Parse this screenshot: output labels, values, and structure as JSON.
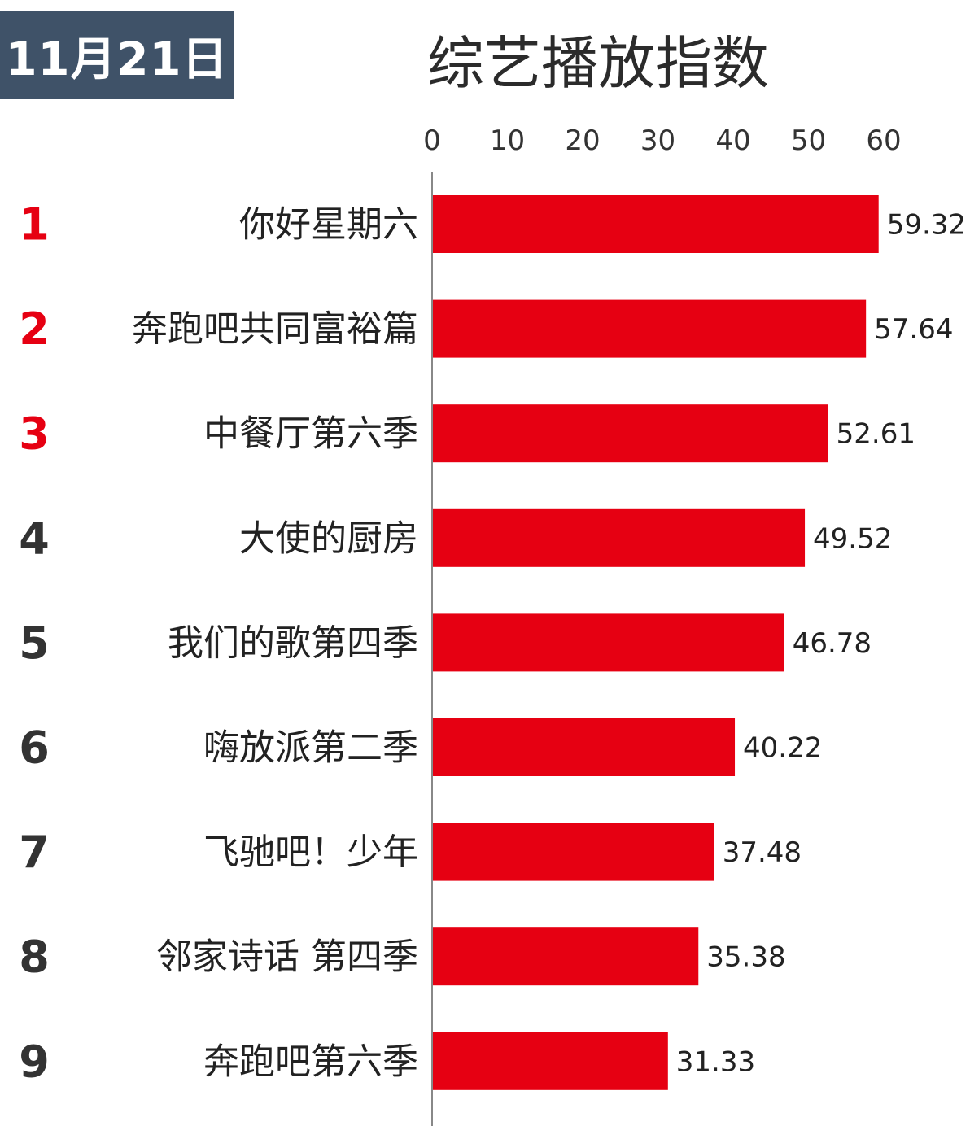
{
  "header": {
    "date": "11月21日",
    "title": "综艺播放指数"
  },
  "colors": {
    "badge_bg": "#3f5268",
    "bar": "#e60012",
    "top_rank": "#e60012",
    "rank": "#333333"
  },
  "chart_data": {
    "type": "bar",
    "orientation": "horizontal",
    "title": "综艺播放指数",
    "x_axis_position": "top",
    "xlim": [
      0,
      60
    ],
    "x_ticks": [
      "0",
      "10",
      "20",
      "30",
      "40",
      "50",
      "60"
    ],
    "ranks": [
      "1",
      "2",
      "3",
      "4",
      "5",
      "6",
      "7",
      "8",
      "9"
    ],
    "categories": [
      "你好星期六",
      "奔跑吧共同富裕篇",
      "中餐厅第六季",
      "大使的厨房",
      "我们的歌第四季",
      "嗨放派第二季",
      "飞驰吧！少年",
      "邻家诗话  第四季",
      "奔跑吧第六季"
    ],
    "values": [
      59.32,
      57.64,
      52.61,
      49.52,
      46.78,
      40.22,
      37.48,
      35.38,
      31.33
    ],
    "value_labels": [
      "59.32",
      "57.64",
      "52.61",
      "49.52",
      "46.78",
      "40.22",
      "37.48",
      "35.38",
      "31.33"
    ],
    "grid": false,
    "legend": "none"
  }
}
